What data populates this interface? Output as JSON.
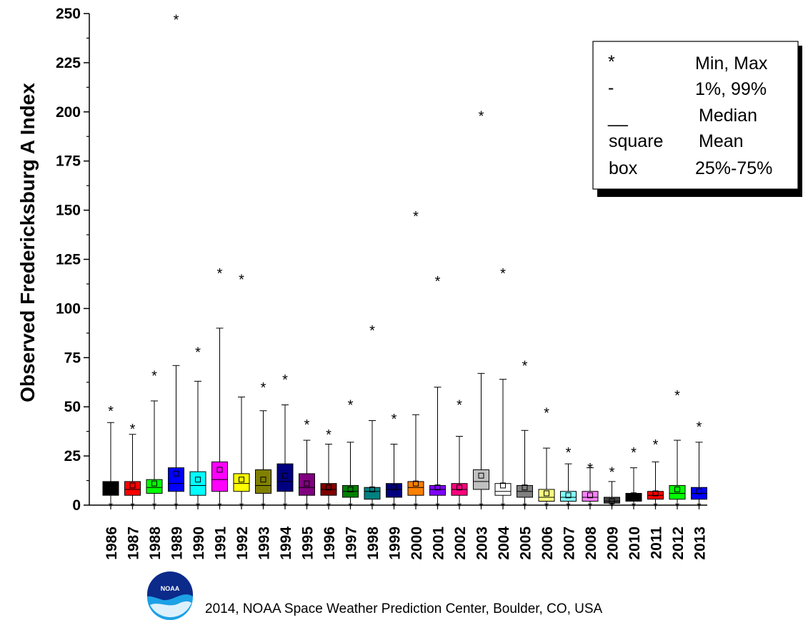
{
  "chart_data": {
    "type": "box",
    "ylabel": "Observed Fredericksburg A Index",
    "ylim": [
      0,
      250
    ],
    "yticks": [
      0,
      25,
      50,
      75,
      100,
      125,
      150,
      175,
      200,
      225,
      250
    ],
    "categories": [
      "1986",
      "1987",
      "1988",
      "1989",
      "1990",
      "1991",
      "1992",
      "1993",
      "1994",
      "1995",
      "1996",
      "1997",
      "1998",
      "1999",
      "2000",
      "2001",
      "2002",
      "2003",
      "2004",
      "2005",
      "2006",
      "2007",
      "2008",
      "2009",
      "2010",
      "2011",
      "2012",
      "2013"
    ],
    "box_colors": [
      "#000000",
      "#ff0000",
      "#00ff00",
      "#0000ff",
      "#00ffff",
      "#ff00ff",
      "#ffff00",
      "#808000",
      "#000080",
      "#800080",
      "#800000",
      "#008000",
      "#008080",
      "#000080",
      "#ff8000",
      "#8000ff",
      "#ff0080",
      "#c0c0c0",
      "#ffffff",
      "#808080",
      "#ffff80",
      "#80ffff",
      "#ff80ff",
      "#404040",
      "#000000",
      "#ff0000",
      "#00ff00",
      "#0000ff"
    ],
    "series": [
      {
        "year": "1986",
        "min": 1,
        "p1": 1,
        "q1": 5,
        "median": 9,
        "mean": 9,
        "q3": 12,
        "p99": 42,
        "max": 49
      },
      {
        "year": "1987",
        "min": 1,
        "p1": 1,
        "q1": 5,
        "median": 8,
        "mean": 10,
        "q3": 12,
        "p99": 36,
        "max": 40
      },
      {
        "year": "1988",
        "min": 1,
        "p1": 1,
        "q1": 6,
        "median": 9,
        "mean": 11,
        "q3": 13,
        "p99": 53,
        "max": 67
      },
      {
        "year": "1989",
        "min": 1,
        "p1": 1,
        "q1": 7,
        "median": 11,
        "mean": 16,
        "q3": 19,
        "p99": 71,
        "max": 248
      },
      {
        "year": "1990",
        "min": 1,
        "p1": 1,
        "q1": 5,
        "median": 10,
        "mean": 13,
        "q3": 17,
        "p99": 63,
        "max": 79
      },
      {
        "year": "1991",
        "min": 1,
        "p1": 1,
        "q1": 7,
        "median": 13,
        "mean": 18,
        "q3": 22,
        "p99": 90,
        "max": 119
      },
      {
        "year": "1992",
        "min": 1,
        "p1": 1,
        "q1": 7,
        "median": 11,
        "mean": 13,
        "q3": 16,
        "p99": 55,
        "max": 116
      },
      {
        "year": "1993",
        "min": 1,
        "p1": 1,
        "q1": 6,
        "median": 10,
        "mean": 13,
        "q3": 18,
        "p99": 48,
        "max": 61
      },
      {
        "year": "1994",
        "min": 1,
        "p1": 1,
        "q1": 7,
        "median": 12,
        "mean": 15,
        "q3": 21,
        "p99": 51,
        "max": 65
      },
      {
        "year": "1995",
        "min": 1,
        "p1": 1,
        "q1": 5,
        "median": 9,
        "mean": 11,
        "q3": 16,
        "p99": 33,
        "max": 42
      },
      {
        "year": "1996",
        "min": 1,
        "p1": 1,
        "q1": 5,
        "median": 8,
        "mean": 9,
        "q3": 11,
        "p99": 31,
        "max": 37
      },
      {
        "year": "1997",
        "min": 1,
        "p1": 1,
        "q1": 4,
        "median": 7,
        "mean": 8,
        "q3": 10,
        "p99": 32,
        "max": 52
      },
      {
        "year": "1998",
        "min": 1,
        "p1": 1,
        "q1": 3,
        "median": 7,
        "mean": 8,
        "q3": 9,
        "p99": 43,
        "max": 90
      },
      {
        "year": "1999",
        "min": 1,
        "p1": 1,
        "q1": 4,
        "median": 8,
        "mean": 9,
        "q3": 11,
        "p99": 31,
        "max": 45
      },
      {
        "year": "2000",
        "min": 1,
        "p1": 1,
        "q1": 5,
        "median": 9,
        "mean": 11,
        "q3": 12,
        "p99": 46,
        "max": 148
      },
      {
        "year": "2001",
        "min": 1,
        "p1": 1,
        "q1": 5,
        "median": 8,
        "mean": 9,
        "q3": 10,
        "p99": 60,
        "max": 115
      },
      {
        "year": "2002",
        "min": 1,
        "p1": 1,
        "q1": 5,
        "median": 8,
        "mean": 9,
        "q3": 11,
        "p99": 35,
        "max": 52
      },
      {
        "year": "2003",
        "min": 1,
        "p1": 1,
        "q1": 8,
        "median": 12,
        "mean": 15,
        "q3": 18,
        "p99": 67,
        "max": 199
      },
      {
        "year": "2004",
        "min": 1,
        "p1": 1,
        "q1": 5,
        "median": 7,
        "mean": 10,
        "q3": 11,
        "p99": 64,
        "max": 119
      },
      {
        "year": "2005",
        "min": 1,
        "p1": 1,
        "q1": 4,
        "median": 7,
        "mean": 9,
        "q3": 10,
        "p99": 38,
        "max": 72
      },
      {
        "year": "2006",
        "min": 1,
        "p1": 1,
        "q1": 2,
        "median": 4,
        "mean": 6,
        "q3": 8,
        "p99": 29,
        "max": 48
      },
      {
        "year": "2007",
        "min": 1,
        "p1": 1,
        "q1": 2,
        "median": 4,
        "mean": 5,
        "q3": 7,
        "p99": 21,
        "max": 28
      },
      {
        "year": "2008",
        "min": 1,
        "p1": 1,
        "q1": 2,
        "median": 4,
        "mean": 5,
        "q3": 7,
        "p99": 19,
        "max": 20
      },
      {
        "year": "2009",
        "min": 1,
        "p1": 1,
        "q1": 1,
        "median": 2,
        "mean": 2,
        "q3": 4,
        "p99": 12,
        "max": 18
      },
      {
        "year": "2010",
        "min": 1,
        "p1": 1,
        "q1": 2,
        "median": 4,
        "mean": 5,
        "q3": 6,
        "p99": 19,
        "max": 28
      },
      {
        "year": "2011",
        "min": 1,
        "p1": 1,
        "q1": 3,
        "median": 5,
        "mean": 6,
        "q3": 7,
        "p99": 22,
        "max": 32
      },
      {
        "year": "2012",
        "min": 1,
        "p1": 1,
        "q1": 3,
        "median": 6,
        "mean": 8,
        "q3": 10,
        "p99": 33,
        "max": 57
      },
      {
        "year": "2013",
        "min": 1,
        "p1": 1,
        "q1": 3,
        "median": 6,
        "mean": 7,
        "q3": 9,
        "p99": 32,
        "max": 41
      }
    ],
    "legend": [
      {
        "symbol": "*",
        "label": "Min, Max"
      },
      {
        "symbol": "-",
        "label": "1%, 99%"
      },
      {
        "symbol": "__",
        "label": "Median"
      },
      {
        "symbol": "square",
        "label": "Mean"
      },
      {
        "symbol": "box",
        "label": "25%-75%"
      }
    ],
    "legend_position": "top-right"
  },
  "credit": "2014, NOAA Space Weather Prediction Center, Boulder, CO, USA",
  "logo_text": "NOAA"
}
